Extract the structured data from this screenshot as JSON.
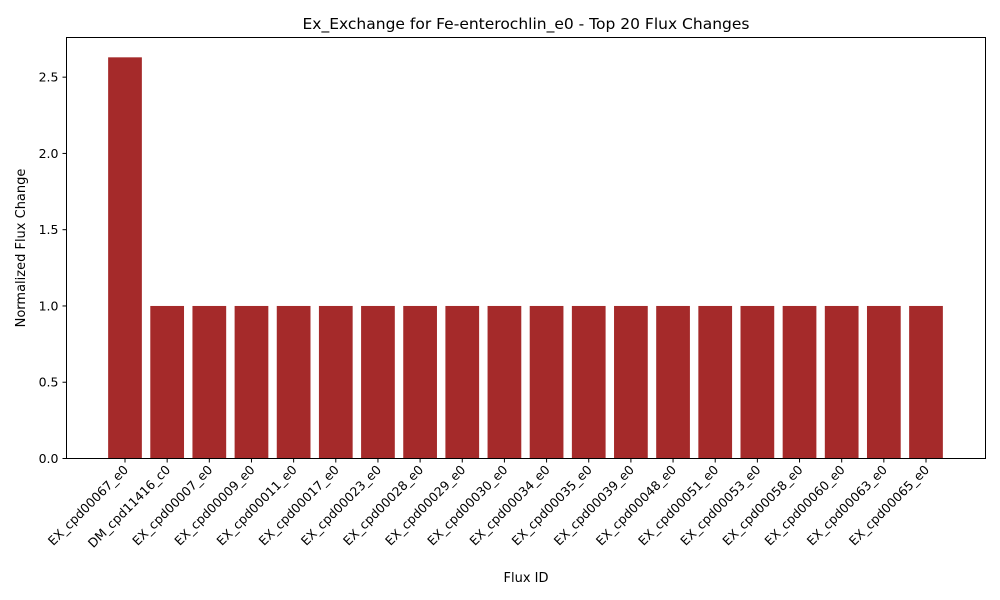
{
  "chart_data": {
    "type": "bar",
    "title": "Ex_Exchange for Fe-enterochlin_e0 - Top 20 Flux Changes",
    "xlabel": "Flux ID",
    "ylabel": "Normalized Flux Change",
    "categories": [
      "EX_cpd00067_e0",
      "DM_cpd11416_c0",
      "EX_cpd00007_e0",
      "EX_cpd00009_e0",
      "EX_cpd00011_e0",
      "EX_cpd00017_e0",
      "EX_cpd00023_e0",
      "EX_cpd00028_e0",
      "EX_cpd00029_e0",
      "EX_cpd00030_e0",
      "EX_cpd00034_e0",
      "EX_cpd00035_e0",
      "EX_cpd00039_e0",
      "EX_cpd00048_e0",
      "EX_cpd00051_e0",
      "EX_cpd00053_e0",
      "EX_cpd00058_e0",
      "EX_cpd00060_e0",
      "EX_cpd00063_e0",
      "EX_cpd00065_e0"
    ],
    "values": [
      2.63,
      1.0,
      1.0,
      1.0,
      1.0,
      1.0,
      1.0,
      1.0,
      1.0,
      1.0,
      1.0,
      1.0,
      1.0,
      1.0,
      1.0,
      1.0,
      1.0,
      1.0,
      1.0,
      1.0
    ],
    "ylim": [
      0,
      2.76
    ],
    "yticks": [
      "0.0",
      "0.5",
      "1.0",
      "1.5",
      "2.0",
      "2.5"
    ],
    "bar_color": "#a52a2a",
    "grid": false
  }
}
